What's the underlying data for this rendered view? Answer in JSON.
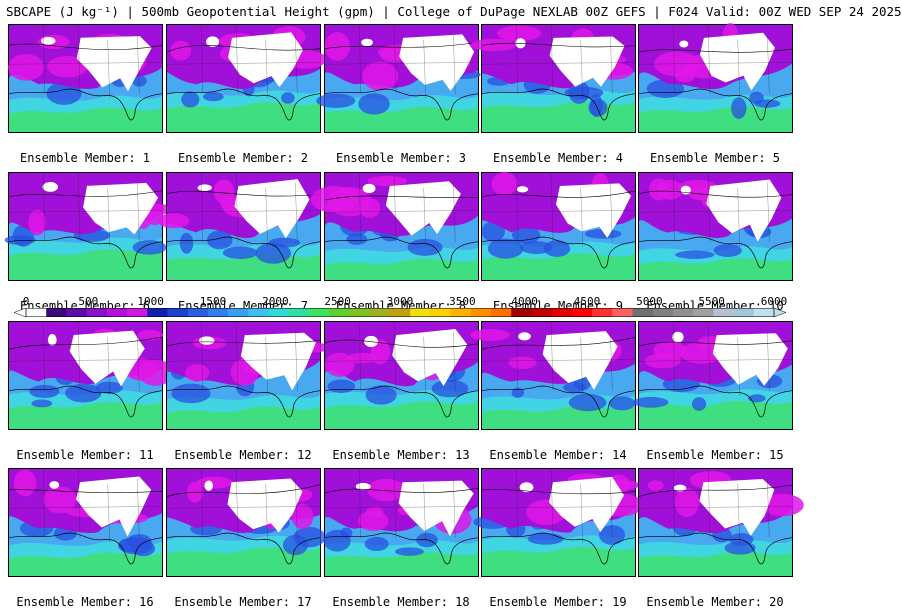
{
  "title": "SBCAPE (J kg⁻¹) | 500mb Geopotential Height (gpm) | College of DuPage NEXLAB 00Z GEFS | F024 Valid: 00Z WED SEP 24 2025",
  "members": [
    {
      "label": "Ensemble Member: 1"
    },
    {
      "label": "Ensemble Member: 2"
    },
    {
      "label": "Ensemble Member: 3"
    },
    {
      "label": "Ensemble Member: 4"
    },
    {
      "label": "Ensemble Member: 5"
    },
    {
      "label": "Ensemble Member: 6"
    },
    {
      "label": "Ensemble Member: 7"
    },
    {
      "label": "Ensemble Member: 8"
    },
    {
      "label": "Ensemble Member: 9"
    },
    {
      "label": "Ensemble Member: 10"
    },
    {
      "label": "Ensemble Member: 11"
    },
    {
      "label": "Ensemble Member: 12"
    },
    {
      "label": "Ensemble Member: 13"
    },
    {
      "label": "Ensemble Member: 14"
    },
    {
      "label": "Ensemble Member: 15"
    },
    {
      "label": "Ensemble Member: 16"
    },
    {
      "label": "Ensemble Member: 17"
    },
    {
      "label": "Ensemble Member: 18"
    },
    {
      "label": "Ensemble Member: 19"
    },
    {
      "label": "Ensemble Member: 20"
    }
  ],
  "colorbar": {
    "ticks": [
      "0",
      "500",
      "1000",
      "1500",
      "2000",
      "2500",
      "3000",
      "3500",
      "4000",
      "4500",
      "5000",
      "5500",
      "6000"
    ],
    "range": [
      0,
      6000
    ],
    "colors": [
      "#ffffff",
      "#3a0a7a",
      "#5a0fa8",
      "#8a10c8",
      "#b010d8",
      "#d018e0",
      "#1020b0",
      "#2040d0",
      "#2a60e0",
      "#3080f0",
      "#3aa0f0",
      "#40c0f0",
      "#30d8d8",
      "#30e0a0",
      "#40e060",
      "#60d030",
      "#80c020",
      "#a0b020",
      "#c0a010",
      "#f0e010",
      "#ffd000",
      "#ffb000",
      "#ff9000",
      "#ff7000",
      "#a00000",
      "#c00000",
      "#e00000",
      "#ff0000",
      "#ff3030",
      "#ff6060",
      "#707070",
      "#808080",
      "#909090",
      "#a0a0a0",
      "#b8c0d0",
      "#a0c8d8",
      "#c0e0ec"
    ]
  },
  "palette": {
    "purple": "#a010d8",
    "magenta": "#e018e8",
    "blue": "#2850e0",
    "sky": "#48a8f0",
    "cyan": "#40d8e0",
    "green": "#40e070",
    "land_white": "#ffffff"
  }
}
